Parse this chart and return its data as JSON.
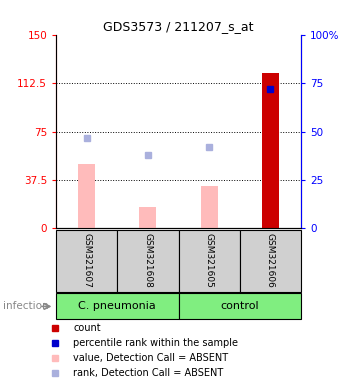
{
  "title": "GDS3573 / 211207_s_at",
  "samples": [
    "GSM321607",
    "GSM321608",
    "GSM321605",
    "GSM321606"
  ],
  "bar_values": [
    50,
    17,
    33,
    120
  ],
  "bar_colors": [
    "#ffbbbb",
    "#ffbbbb",
    "#ffbbbb",
    "#cc0000"
  ],
  "dot_values": [
    70,
    57,
    63,
    108
  ],
  "dot_colors": [
    "#aab0dd",
    "#aab0dd",
    "#aab0dd",
    "#0000cc"
  ],
  "ylim_left": [
    0,
    150
  ],
  "ylim_right": [
    0,
    100
  ],
  "yticks_left": [
    0,
    37.5,
    75,
    112.5,
    150
  ],
  "yticks_right": [
    0,
    25,
    50,
    75,
    100
  ],
  "ytick_labels_left": [
    "0",
    "37.5",
    "75",
    "112.5",
    "150"
  ],
  "ytick_labels_right": [
    "0",
    "25",
    "50",
    "75",
    "100%"
  ],
  "dotted_lines": [
    37.5,
    75,
    112.5
  ],
  "group_label": "infection",
  "group_defs": [
    {
      "name": "C. pneumonia",
      "start": 0,
      "end": 2,
      "color": "#80ee80"
    },
    {
      "name": "control",
      "start": 2,
      "end": 4,
      "color": "#80ee80"
    }
  ],
  "legend": [
    {
      "label": "count",
      "color": "#cc0000"
    },
    {
      "label": "percentile rank within the sample",
      "color": "#0000cc"
    },
    {
      "label": "value, Detection Call = ABSENT",
      "color": "#ffbbbb"
    },
    {
      "label": "rank, Detection Call = ABSENT",
      "color": "#aab0dd"
    }
  ],
  "title_fontsize": 9,
  "tick_fontsize": 7.5,
  "sample_fontsize": 6.5,
  "group_fontsize": 8,
  "legend_fontsize": 7
}
